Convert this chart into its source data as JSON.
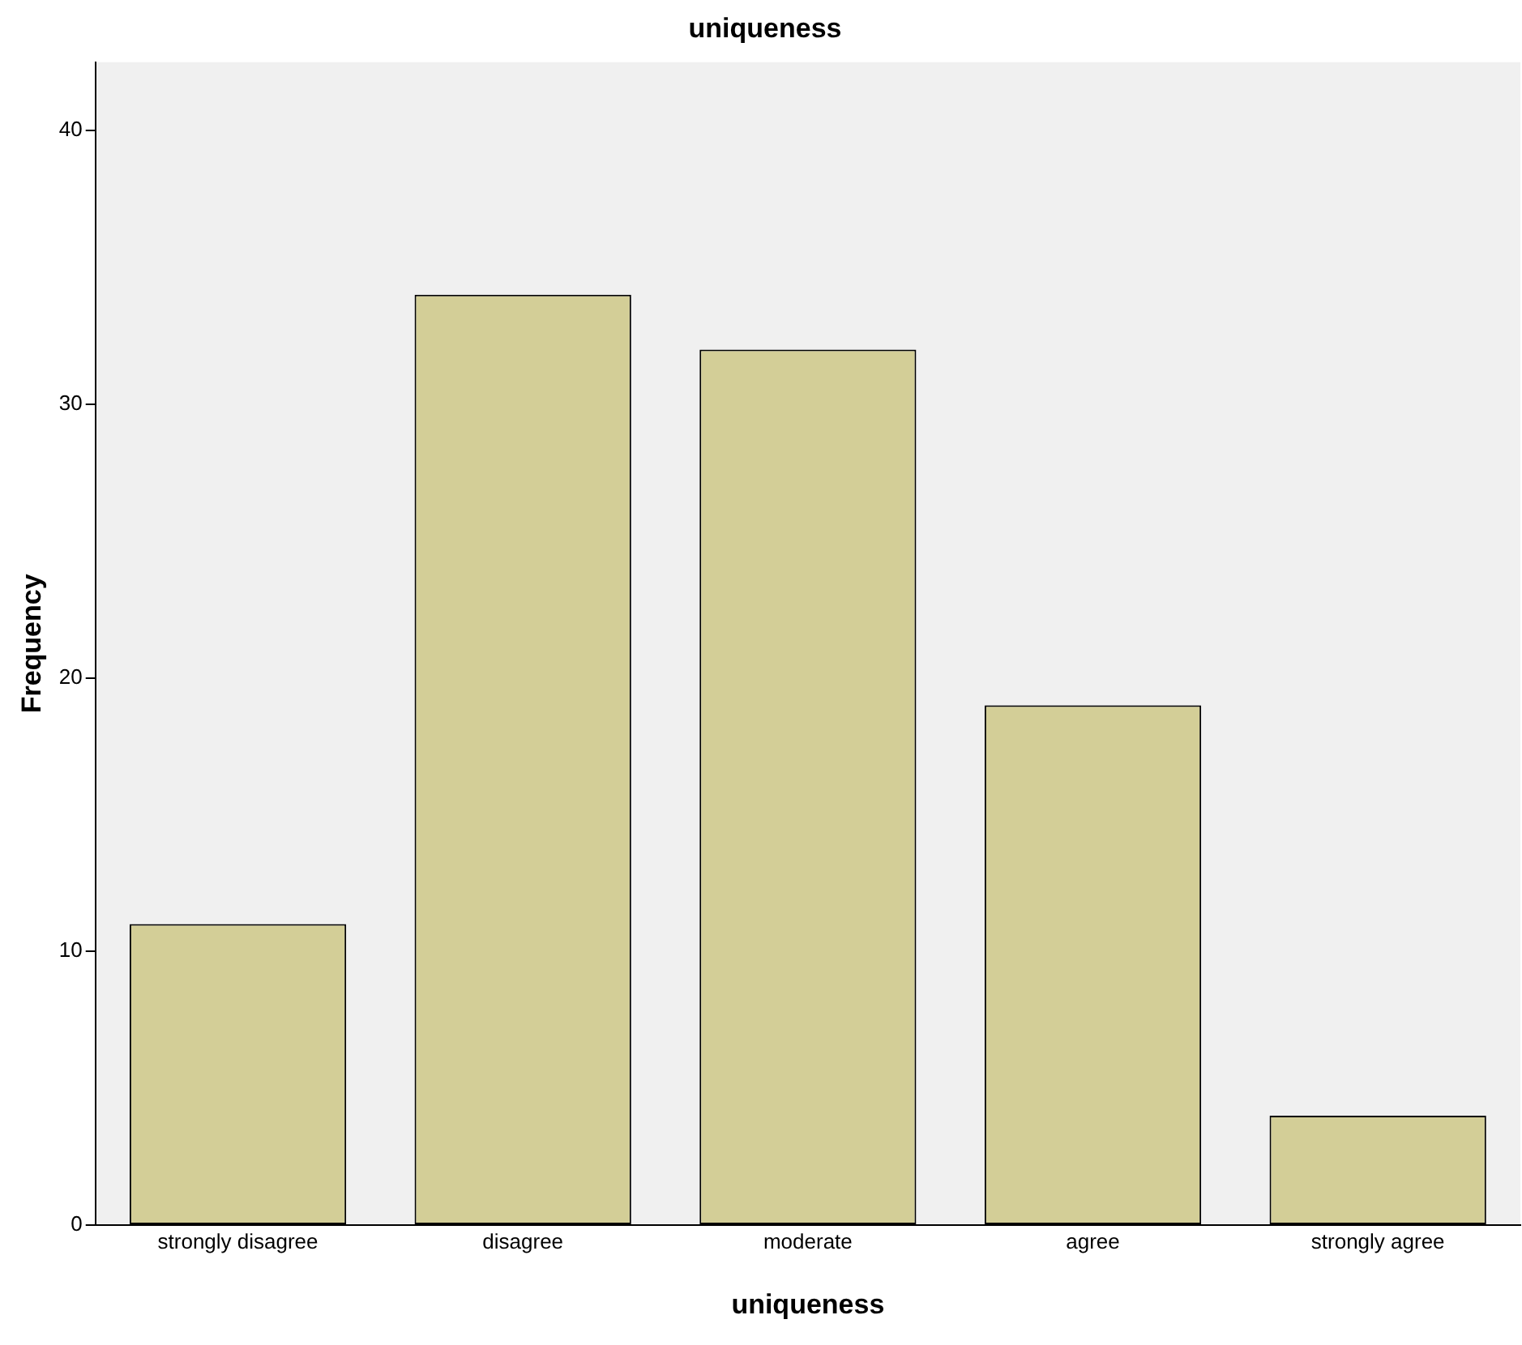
{
  "chart_data": {
    "type": "bar",
    "title": "uniqueness",
    "xlabel": "uniqueness",
    "ylabel": "Frequency",
    "categories": [
      "strongly disagree",
      "disagree",
      "moderate",
      "agree",
      "strongly agree"
    ],
    "values": [
      11,
      34,
      32,
      19,
      4
    ],
    "color": "#d3ce97",
    "ylim": [
      0,
      42.5
    ],
    "yticks": [
      0,
      10,
      20,
      30,
      40
    ],
    "grid": false,
    "legend": false
  }
}
